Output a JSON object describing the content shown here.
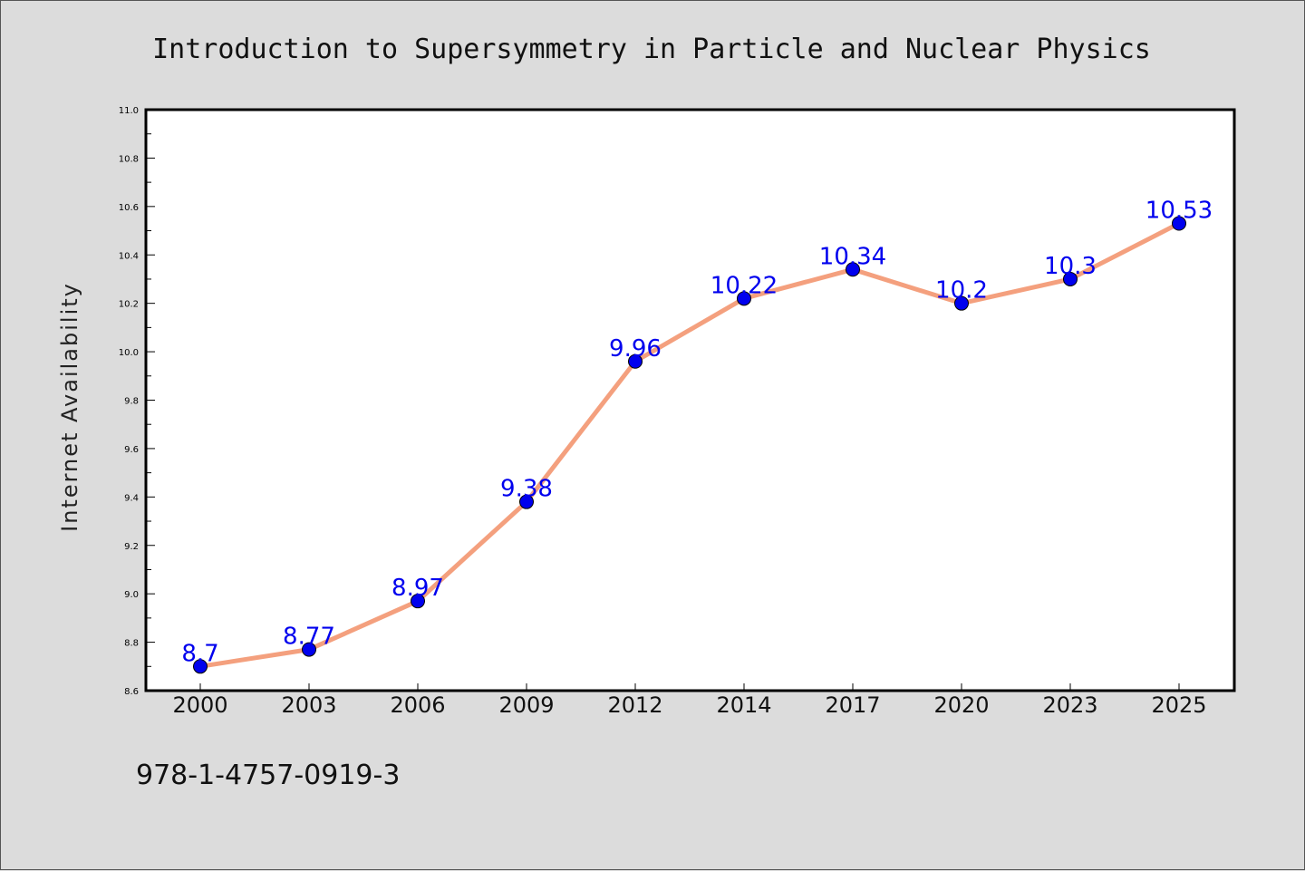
{
  "chart_data": {
    "type": "line",
    "title": "Introduction to Supersymmetry in Particle and Nuclear Physics",
    "xlabel": "",
    "ylabel": "Internet Availability",
    "categories": [
      "2000",
      "2003",
      "2006",
      "2009",
      "2012",
      "2014",
      "2017",
      "2020",
      "2023",
      "2025"
    ],
    "values": [
      8.7,
      8.77,
      8.97,
      9.38,
      9.96,
      10.22,
      10.34,
      10.2,
      10.3,
      10.53
    ],
    "data_labels": [
      "8.7",
      "8.77",
      "8.97",
      "9.38",
      "9.96",
      "10.22",
      "10.34",
      "10.2",
      "10.3",
      "10.53"
    ],
    "ylim": [
      8.6,
      11.0
    ],
    "yticks": [
      "8.6",
      "8.8",
      "9.0",
      "9.2",
      "9.4",
      "9.6",
      "9.8",
      "10.0",
      "10.2",
      "10.4",
      "10.6",
      "10.8",
      "11.0"
    ],
    "grid": false,
    "legend": "none",
    "colors": {
      "line": "#f4a07e",
      "marker": "#0000ee",
      "data_label": "#0000ee",
      "plot_background": "#ffffff",
      "figure_background": "#dcdcdc"
    }
  },
  "footer": {
    "isbn": "978-1-4757-0919-3"
  }
}
